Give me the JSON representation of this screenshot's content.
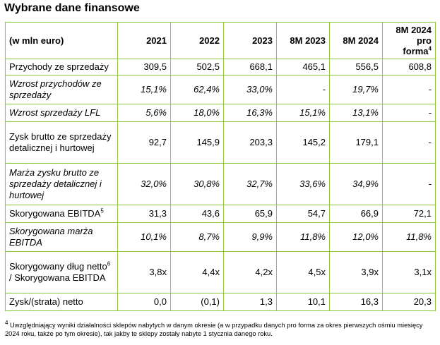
{
  "title": "Wybrane dane finansowe",
  "table": {
    "unit_header": "(w mln euro)",
    "columns": [
      "2021",
      "2022",
      "2023",
      "8M 2023",
      "8M 2024",
      "8M 2024"
    ],
    "last_column_line2": "pro forma",
    "last_column_sup": "4",
    "rows": [
      {
        "label": "Przychody ze sprzedaży",
        "sup": "",
        "label_tail": "",
        "italic": false,
        "values": [
          "309,5",
          "502,5",
          "668,1",
          "465,1",
          "556,5",
          "608,8"
        ]
      },
      {
        "label": "Wzrost przychodów ze sprzedaży",
        "sup": "",
        "label_tail": "",
        "italic": true,
        "values": [
          "15,1%",
          "62,4%",
          "33,0%",
          "-",
          "19,7%",
          "-"
        ]
      },
      {
        "label": "Wzrost sprzedaży LFL",
        "sup": "",
        "label_tail": "",
        "italic": true,
        "values": [
          "5,6%",
          "18,0%",
          "16,3%",
          "15,1%",
          "13,1%",
          "-"
        ]
      },
      {
        "label": "Zysk brutto ze sprzedaży detalicznej i hurtowej",
        "sup": "",
        "label_tail": "",
        "italic": false,
        "values": [
          "92,7",
          "145,9",
          "203,3",
          "145,2",
          "179,1",
          "-"
        ]
      },
      {
        "label": "Marża zysku brutto ze sprzedaży detalicznej i hurtowej",
        "sup": "",
        "label_tail": "",
        "italic": true,
        "values": [
          "32,0%",
          "30,8%",
          "32,7%",
          "33,6%",
          "34,9%",
          "-"
        ]
      },
      {
        "label": "Skorygowana EBITDA",
        "sup": "5",
        "label_tail": "",
        "italic": false,
        "values": [
          "31,3",
          "43,6",
          "65,9",
          "54,7",
          "66,9",
          "72,1"
        ]
      },
      {
        "label": "Skorygowana marża EBITDA",
        "sup": "",
        "label_tail": "",
        "italic": true,
        "values": [
          "10,1%",
          "8,7%",
          "9,9%",
          "11,8%",
          "12,0%",
          "11,8%"
        ]
      },
      {
        "label": "Skorygowany dług netto",
        "sup": "6",
        "label_tail": " / Skorygowana EBITDA",
        "italic": false,
        "values": [
          "3,8x",
          "4,4x",
          "4,2x",
          "4,5x",
          "3,9x",
          "3,1x"
        ]
      },
      {
        "label": "Zysk/(strata) netto",
        "sup": "",
        "label_tail": "",
        "italic": false,
        "values": [
          "0,0",
          "(0,1)",
          "1,3",
          "10,1",
          "16,3",
          "20,3"
        ]
      }
    ]
  },
  "footnote": {
    "marker": "4",
    "text": " Uwzględniający wyniki działalności sklepów nabytych w danym okresie (a w przypadku danych pro forma za okres pierwszych ośmiu miesięcy 2024 roku, także po tym okresie), tak jakby te sklepy zostały nabyte 1 stycznia danego roku."
  }
}
